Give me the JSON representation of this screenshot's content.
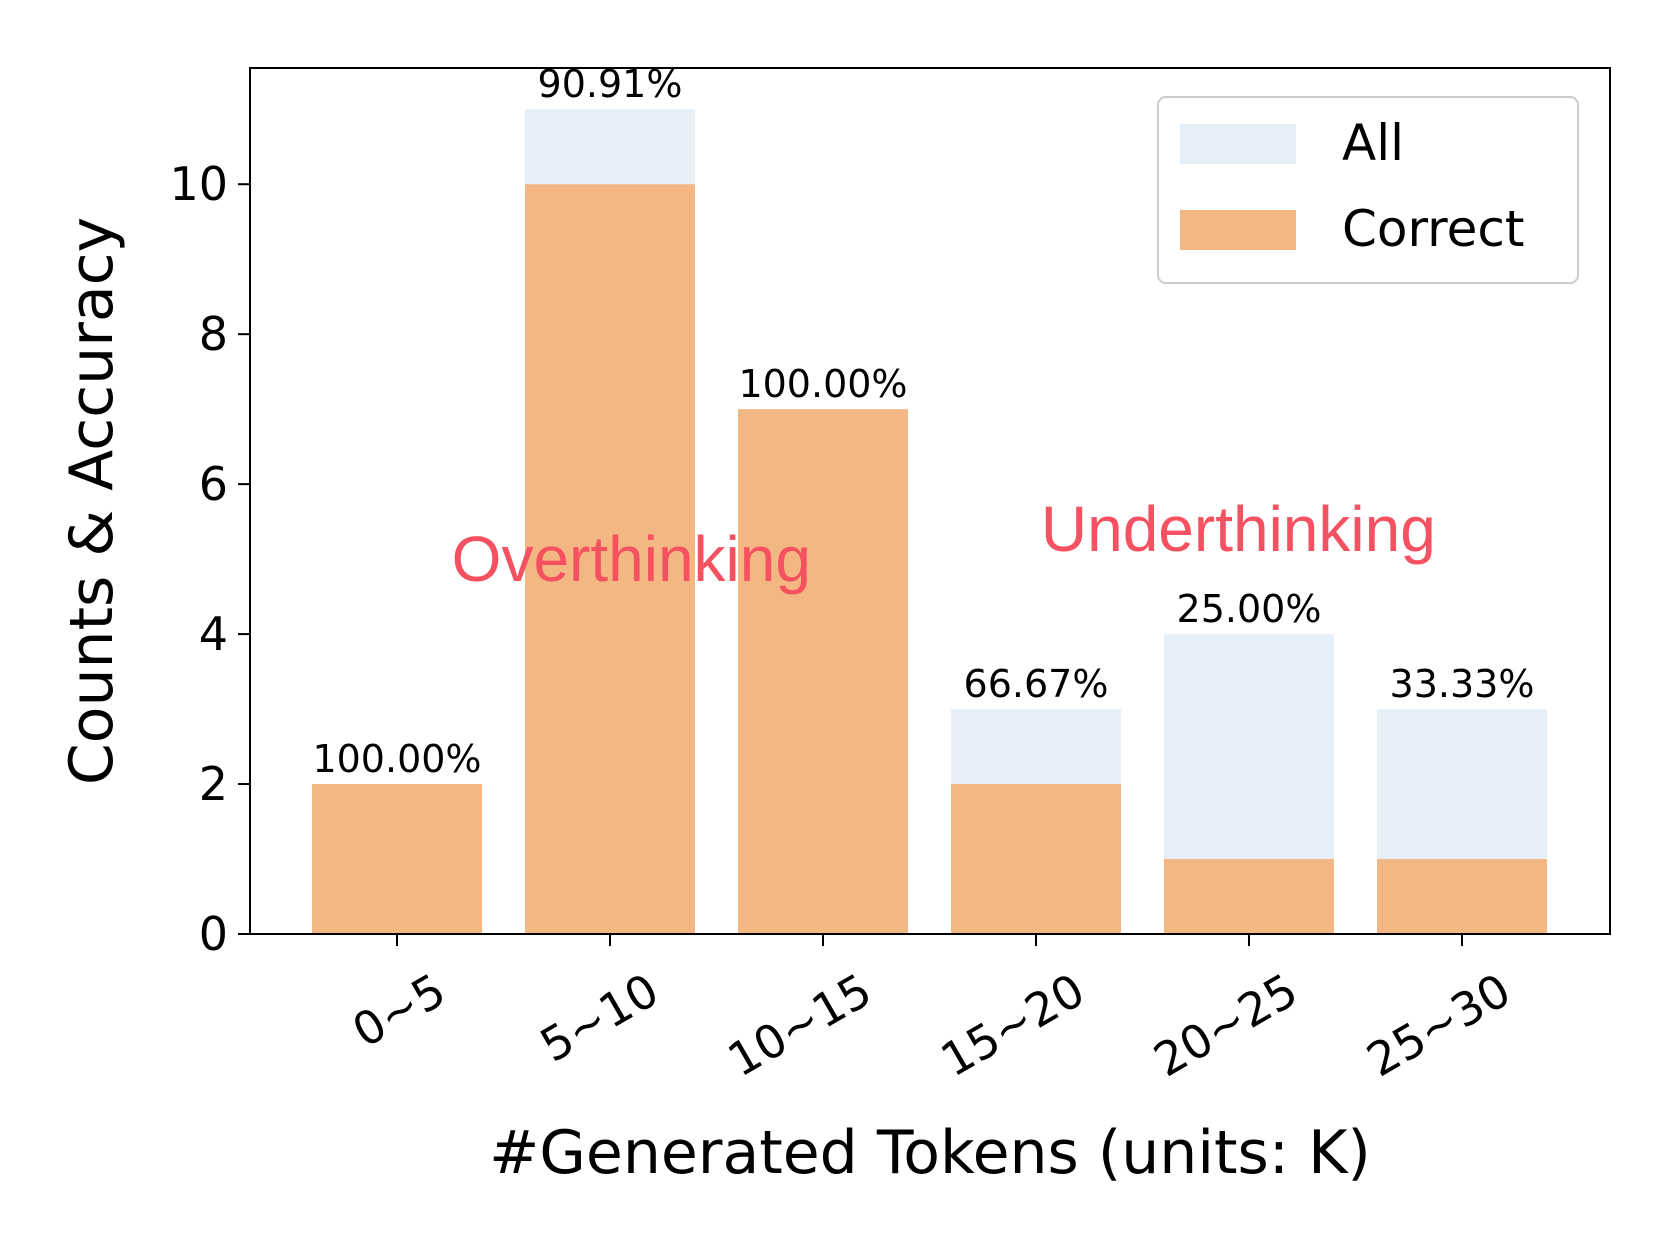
{
  "chart_data": {
    "type": "bar",
    "xlabel": "#Generated Tokens (units: K)",
    "ylabel": "Counts & Accuracy",
    "categories": [
      "0~5",
      "5~10",
      "10~15",
      "15~20",
      "20~25",
      "25~30"
    ],
    "series": [
      {
        "name": "All",
        "values": [
          2,
          11,
          7,
          3,
          4,
          3
        ],
        "color": "#e6eff7"
      },
      {
        "name": "Correct",
        "values": [
          2,
          10,
          7,
          2,
          1,
          1
        ],
        "color": "#f2b783"
      }
    ],
    "bar_labels": [
      "100.00%",
      "90.91%",
      "100.00%",
      "66.67%",
      "25.00%",
      "33.33%"
    ],
    "ylim": [
      0,
      11.55
    ],
    "yticks": [
      0,
      2,
      4,
      6,
      8,
      10
    ],
    "grid": false,
    "legend_position": "top-right",
    "annotations": [
      {
        "text": "Overthinking",
        "x": 1.1,
        "y": 5.0,
        "color": "#f55161"
      },
      {
        "text": "Underthinking",
        "x": 3.95,
        "y": 5.4,
        "color": "#f55161"
      }
    ]
  }
}
